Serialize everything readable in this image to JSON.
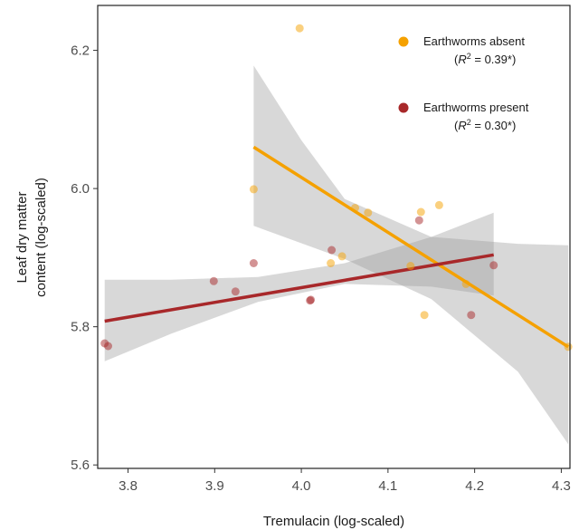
{
  "chart_data": {
    "type": "scatter",
    "xlabel": "Tremulacin (log-scaled)",
    "ylabel_lines": [
      "Leaf dry matter",
      "content (log-scaled)"
    ],
    "xlim": [
      3.765,
      4.31
    ],
    "ylim": [
      5.595,
      6.265
    ],
    "x_ticks": [
      "3.8",
      "3.9",
      "4.0",
      "4.1",
      "4.2",
      "4.3"
    ],
    "y_ticks": [
      "5.6",
      "5.8",
      "6.0",
      "6.2"
    ],
    "grid": false,
    "legend_position": "top-right",
    "series": [
      {
        "name": "Earthworms absent",
        "r2_text": "(R² = 0.39*)",
        "r2_value": "0.39*",
        "color": "#f5a100",
        "points": [
          [
            3.998,
            6.232
          ],
          [
            3.945,
            5.999
          ],
          [
            4.062,
            5.972
          ],
          [
            4.077,
            5.965
          ],
          [
            4.159,
            5.976
          ],
          [
            4.138,
            5.966
          ],
          [
            4.047,
            5.902
          ],
          [
            4.034,
            5.892
          ],
          [
            4.126,
            5.888
          ],
          [
            4.19,
            5.862
          ],
          [
            4.142,
            5.817
          ],
          [
            4.308,
            5.771
          ]
        ],
        "fit": {
          "x": [
            3.945,
            4.308
          ],
          "y": [
            6.06,
            5.771
          ]
        },
        "ci_lower": [
          [
            3.945,
            5.946
          ],
          [
            4.05,
            5.898
          ],
          [
            4.15,
            5.84
          ],
          [
            4.25,
            5.735
          ],
          [
            4.308,
            5.63
          ]
        ],
        "ci_upper": [
          [
            3.945,
            6.178
          ],
          [
            4.0,
            6.07
          ],
          [
            4.05,
            5.985
          ],
          [
            4.15,
            5.93
          ],
          [
            4.25,
            5.92
          ],
          [
            4.308,
            5.918
          ]
        ]
      },
      {
        "name": "Earthworms present",
        "r2_text": "(R² = 0.30*)",
        "r2_value": "0.30*",
        "color": "#a8282a",
        "points": [
          [
            3.773,
            5.776
          ],
          [
            3.777,
            5.772
          ],
          [
            3.899,
            5.866
          ],
          [
            3.924,
            5.851
          ],
          [
            3.945,
            5.892
          ],
          [
            4.01,
            5.838
          ],
          [
            4.011,
            5.839
          ],
          [
            4.035,
            5.911
          ],
          [
            4.136,
            5.954
          ],
          [
            4.196,
            5.817
          ],
          [
            4.222,
            5.889
          ]
        ],
        "fit": {
          "x": [
            3.773,
            4.222
          ],
          "y": [
            5.808,
            5.904
          ]
        },
        "ci_lower": [
          [
            3.773,
            5.75
          ],
          [
            3.85,
            5.79
          ],
          [
            3.95,
            5.836
          ],
          [
            4.05,
            5.862
          ],
          [
            4.15,
            5.858
          ],
          [
            4.222,
            5.845
          ]
        ],
        "ci_upper": [
          [
            3.773,
            5.868
          ],
          [
            3.85,
            5.868
          ],
          [
            3.95,
            5.872
          ],
          [
            4.05,
            5.892
          ],
          [
            4.15,
            5.93
          ],
          [
            4.222,
            5.965
          ]
        ]
      }
    ]
  }
}
